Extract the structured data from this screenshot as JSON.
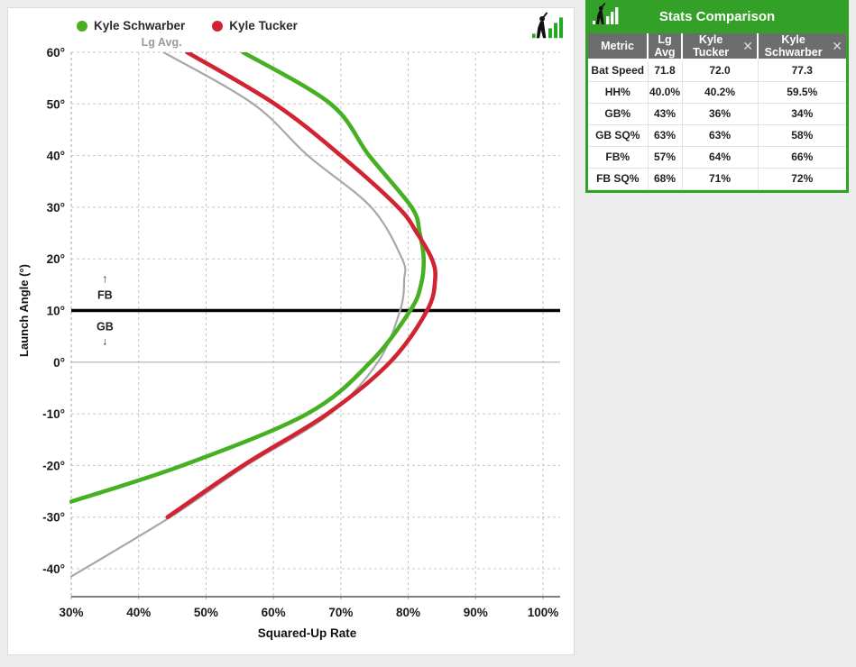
{
  "page": {
    "background": "#ececec"
  },
  "colors": {
    "schwarber_green": "#46b022",
    "tucker_red": "#d12433",
    "lg_avg_gray": "#a8a8a8",
    "panel_green": "#33a028",
    "header_gray": "#6d6d6d",
    "grid": "#c7c7c7",
    "axis": "#555555",
    "zero_line": "#b0b0b0",
    "fb_gb_line": "#000000",
    "tick_text": "#1a1a1a"
  },
  "legend": {
    "items": [
      {
        "label": "Kyle Schwarber",
        "color": "#46b022"
      },
      {
        "label": "Kyle Tucker",
        "color": "#d12433"
      }
    ]
  },
  "icons": {
    "corner_logo": "batter-with-bars-logo",
    "panel_logo": "batter-with-bars-logo"
  },
  "chart_data": {
    "type": "line",
    "title": "",
    "xlabel": "Squared-Up Rate",
    "ylabel": "Launch Angle (°)",
    "xlim": [
      30,
      102.5
    ],
    "ylim": [
      -45.4,
      60
    ],
    "grid": true,
    "x_ticks": [
      {
        "value": 30,
        "label": "30%"
      },
      {
        "value": 40,
        "label": "40%"
      },
      {
        "value": 50,
        "label": "50%"
      },
      {
        "value": 60,
        "label": "60%"
      },
      {
        "value": 70,
        "label": "70%"
      },
      {
        "value": 80,
        "label": "80%"
      },
      {
        "value": 90,
        "label": "90%"
      },
      {
        "value": 100,
        "label": "100%"
      }
    ],
    "y_ticks": [
      {
        "value": 60,
        "label": "60°",
        "gridline": true
      },
      {
        "value": 50,
        "label": "50°",
        "gridline": true
      },
      {
        "value": 40,
        "label": "40°",
        "gridline": true
      },
      {
        "value": 30,
        "label": "30°",
        "gridline": true
      },
      {
        "value": 20,
        "label": "20°",
        "gridline": true
      },
      {
        "value": 10,
        "label": "10°",
        "gridline": false
      },
      {
        "value": 0,
        "label": "0°",
        "gridline": false
      },
      {
        "value": -10,
        "label": "-10°",
        "gridline": true
      },
      {
        "value": -20,
        "label": "-20°",
        "gridline": true
      },
      {
        "value": -30,
        "label": "-30°",
        "gridline": true
      },
      {
        "value": -40,
        "label": "-40°",
        "gridline": true
      }
    ],
    "reference_lines": [
      {
        "name": "fb-gb-boundary",
        "angle": 10,
        "color": "#000000",
        "width": 3.4
      },
      {
        "name": "zero-line",
        "angle": 0,
        "color": "#b0b0b0",
        "width": 1.2
      }
    ],
    "annotations": [
      {
        "text": "Lg Avg.",
        "rate": 43.4,
        "angle": 61.2,
        "color": "#9a9a9a",
        "size": 12.5,
        "weight": 700
      },
      {
        "text": "↑",
        "rate": 35,
        "angle": 15.5,
        "color": "#222222",
        "size": 12,
        "weight": 400
      },
      {
        "text": "FB",
        "rate": 35,
        "angle": 12.3,
        "color": "#222222",
        "size": 12.5,
        "weight": 700
      },
      {
        "text": "GB",
        "rate": 35,
        "angle": 6.2,
        "color": "#222222",
        "size": 12.5,
        "weight": 700
      },
      {
        "text": "↓",
        "rate": 35,
        "angle": 3.4,
        "color": "#222222",
        "size": 12,
        "weight": 400
      }
    ],
    "series": [
      {
        "name": "Lg Avg.",
        "color": "#a8a8a8",
        "width": 2.2,
        "points": [
          [
            60,
            43.7
          ],
          [
            50,
            57.0
          ],
          [
            40,
            65.1
          ],
          [
            30,
            74.5
          ],
          [
            20,
            79.1
          ],
          [
            16,
            79.4
          ],
          [
            10,
            78.8
          ],
          [
            0,
            75.5
          ],
          [
            -10,
            68.4
          ],
          [
            -20,
            56.0
          ],
          [
            -30,
            44.7
          ],
          [
            -41.5,
            30.0
          ]
        ]
      },
      {
        "name": "Kyle Schwarber",
        "color": "#46b022",
        "width": 4.6,
        "points": [
          [
            60,
            55.5
          ],
          [
            50,
            68.5
          ],
          [
            40,
            74.2
          ],
          [
            30,
            80.5
          ],
          [
            25,
            81.7
          ],
          [
            20,
            82.3
          ],
          [
            15,
            81.9
          ],
          [
            10,
            80.3
          ],
          [
            0,
            74.4
          ],
          [
            -10,
            65.0
          ],
          [
            -20,
            46.5
          ],
          [
            -27,
            30.0
          ]
        ]
      },
      {
        "name": "Kyle Tucker",
        "color": "#d12433",
        "width": 4.6,
        "points": [
          [
            60,
            47.2
          ],
          [
            50,
            60.2
          ],
          [
            40,
            70.0
          ],
          [
            30,
            78.5
          ],
          [
            25,
            81.3
          ],
          [
            20,
            83.5
          ],
          [
            16,
            84.0
          ],
          [
            10,
            82.8
          ],
          [
            0,
            77.3
          ],
          [
            -10,
            68.0
          ],
          [
            -20,
            55.5
          ],
          [
            -30,
            44.3
          ]
        ]
      }
    ]
  },
  "stats_panel": {
    "title": "Stats Comparison",
    "columns": [
      {
        "label": "Metric",
        "closable": false
      },
      {
        "label": "Lg Avg",
        "closable": false
      },
      {
        "label": "Kyle Tucker",
        "closable": true
      },
      {
        "label": "Kyle Schwarber",
        "closable": true
      }
    ],
    "rows": [
      {
        "metric": "Bat Speed",
        "values": [
          "71.8",
          "72.0",
          "77.3"
        ]
      },
      {
        "metric": "HH%",
        "values": [
          "40.0%",
          "40.2%",
          "59.5%"
        ]
      },
      {
        "metric": "GB%",
        "values": [
          "43%",
          "36%",
          "34%"
        ]
      },
      {
        "metric": "GB SQ%",
        "values": [
          "63%",
          "63%",
          "58%"
        ]
      },
      {
        "metric": "FB%",
        "values": [
          "57%",
          "64%",
          "66%"
        ]
      },
      {
        "metric": "FB SQ%",
        "values": [
          "68%",
          "71%",
          "72%"
        ]
      }
    ]
  }
}
